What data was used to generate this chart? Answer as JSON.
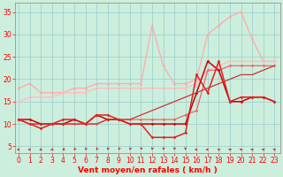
{
  "background_color": "#cceedd",
  "grid_color": "#99cccc",
  "x_label": "Vent moyen/en rafales ( km/h )",
  "x_ticks": [
    0,
    1,
    2,
    3,
    4,
    5,
    6,
    7,
    8,
    9,
    10,
    11,
    12,
    13,
    14,
    15,
    16,
    17,
    18,
    19,
    20,
    21,
    22,
    23
  ],
  "y_ticks": [
    5,
    10,
    15,
    20,
    25,
    30,
    35
  ],
  "xlim": [
    -0.3,
    23.5
  ],
  "ylim": [
    3.5,
    37
  ],
  "series": [
    {
      "x": [
        0,
        1,
        2,
        3,
        4,
        5,
        6,
        7,
        8,
        9,
        10,
        11,
        12,
        13,
        14,
        15,
        16,
        17,
        18,
        19,
        20,
        21,
        22,
        23
      ],
      "y": [
        18,
        19,
        17,
        17,
        17,
        18,
        18,
        19,
        19,
        19,
        19,
        19,
        32,
        23,
        19,
        19,
        20,
        30,
        32,
        34,
        35,
        29,
        24,
        24
      ],
      "color": "#ffaaaa",
      "lw": 0.9,
      "marker": "D",
      "ms": 1.8
    },
    {
      "x": [
        0,
        1,
        2,
        3,
        4,
        5,
        6,
        7,
        8,
        9,
        10,
        11,
        12,
        13,
        14,
        15,
        16,
        17,
        18,
        19,
        20,
        21,
        22,
        23
      ],
      "y": [
        15,
        16,
        16,
        16,
        17,
        17,
        17,
        18,
        18,
        18,
        18,
        18,
        18,
        18,
        18,
        18,
        19,
        22,
        23,
        24,
        24,
        24,
        24,
        24
      ],
      "color": "#ffbbbb",
      "lw": 0.9,
      "marker": "D",
      "ms": 1.8
    },
    {
      "x": [
        0,
        1,
        2,
        3,
        4,
        5,
        6,
        7,
        8,
        9,
        10,
        11,
        12,
        13,
        14,
        15,
        16,
        17,
        18,
        19,
        20,
        21,
        22,
        23
      ],
      "y": [
        11,
        10,
        10,
        10,
        10,
        10,
        10,
        10,
        11,
        11,
        11,
        11,
        11,
        11,
        11,
        12,
        13,
        22,
        22,
        23,
        23,
        23,
        23,
        23
      ],
      "color": "#ee6666",
      "lw": 0.9,
      "marker": "D",
      "ms": 1.8
    },
    {
      "x": [
        0,
        1,
        2,
        3,
        4,
        5,
        6,
        7,
        8,
        9,
        10,
        11,
        12,
        13,
        14,
        15,
        16,
        17,
        18,
        19,
        20,
        21,
        22,
        23
      ],
      "y": [
        11,
        11,
        10,
        10,
        10,
        11,
        10,
        12,
        11,
        11,
        10,
        10,
        10,
        10,
        10,
        10,
        17,
        24,
        22,
        15,
        15,
        16,
        16,
        15
      ],
      "color": "#cc0000",
      "lw": 1.1,
      "marker": "D",
      "ms": 1.8
    },
    {
      "x": [
        0,
        1,
        2,
        3,
        4,
        5,
        6,
        7,
        8,
        9,
        10,
        11,
        12,
        13,
        14,
        15,
        16,
        17,
        18,
        19,
        20,
        21,
        22,
        23
      ],
      "y": [
        11,
        10,
        9,
        10,
        11,
        11,
        10,
        12,
        12,
        11,
        10,
        10,
        7,
        7,
        7,
        8,
        21,
        17,
        24,
        15,
        16,
        16,
        16,
        15
      ],
      "color": "#dd2222",
      "lw": 1.1,
      "marker": "D",
      "ms": 1.8
    },
    {
      "x": [
        0,
        1,
        2,
        3,
        4,
        5,
        6,
        7,
        8,
        9,
        10,
        11,
        12,
        13,
        14,
        15,
        16,
        17,
        18,
        19,
        20,
        21,
        22,
        23
      ],
      "y": [
        11,
        10,
        10,
        10,
        10,
        10,
        10,
        10,
        11,
        11,
        11,
        12,
        13,
        14,
        15,
        16,
        17,
        18,
        19,
        20,
        21,
        21,
        22,
        23
      ],
      "color": "#cc3333",
      "lw": 0.9,
      "marker": null,
      "ms": 0
    }
  ],
  "wind_arrows": {
    "x": [
      0,
      1,
      2,
      3,
      4,
      5,
      6,
      7,
      8,
      9,
      10,
      11,
      12,
      13,
      14,
      15,
      16,
      17,
      18,
      19,
      20,
      21,
      22,
      23
    ],
    "angles_deg": [
      270,
      270,
      240,
      225,
      210,
      200,
      195,
      195,
      190,
      190,
      190,
      185,
      185,
      185,
      185,
      180,
      270,
      270,
      315,
      315,
      315,
      315,
      315,
      315
    ]
  },
  "title_fontsize": 7,
  "axis_label_fontsize": 6.5,
  "tick_fontsize": 5.5
}
